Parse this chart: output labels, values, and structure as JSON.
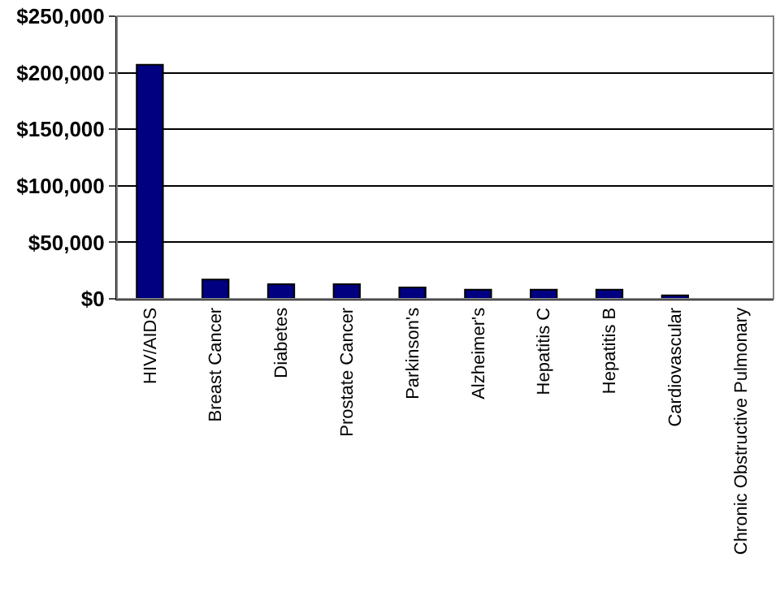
{
  "chart_data": {
    "type": "bar",
    "categories": [
      "HIV/AIDS",
      "Breast Cancer",
      "Diabetes",
      "Prostate Cancer",
      "Parkinson's",
      "Alzheimer's",
      "Hepatitis C",
      "Hepatitis B",
      "Cardiovascular",
      "Chronic Obstructive Pulmonary"
    ],
    "values": [
      207000,
      17000,
      13000,
      13000,
      10000,
      8000,
      8000,
      8000,
      3000,
      0
    ],
    "color": "#000080",
    "ylim": [
      0,
      250000
    ],
    "yticks": [
      {
        "value": 0,
        "label": "$0"
      },
      {
        "value": 50000,
        "label": "$50,000"
      },
      {
        "value": 100000,
        "label": "$100,000"
      },
      {
        "value": 150000,
        "label": "$150,000"
      },
      {
        "value": 200000,
        "label": "$200,000"
      },
      {
        "value": 250000,
        "label": "$250,000"
      }
    ],
    "grid": "y"
  }
}
